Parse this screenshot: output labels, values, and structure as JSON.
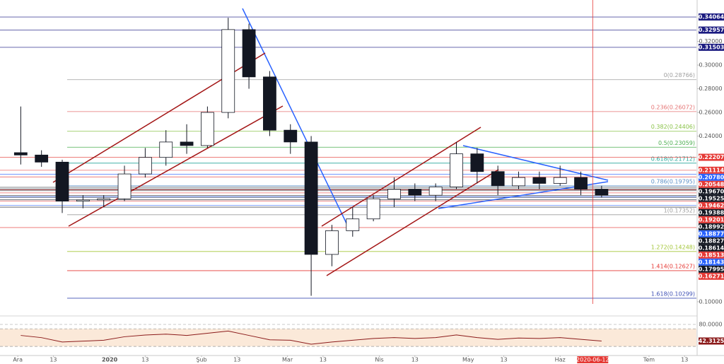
{
  "chart_data": {
    "type": "candlestick",
    "x": [
      "2019-12-02",
      "2019-12-09",
      "2019-12-16",
      "2019-12-23",
      "2019-12-30",
      "2020-01-06",
      "2020-01-13",
      "2020-01-20",
      "2020-01-27",
      "2020-02-03",
      "2020-02-10",
      "2020-02-17",
      "2020-02-24",
      "2020-03-02",
      "2020-03-09",
      "2020-03-16",
      "2020-03-23",
      "2020-03-30",
      "2020-04-06",
      "2020-04-13",
      "2020-04-20",
      "2020-04-27",
      "2020-05-04",
      "2020-05-11",
      "2020-05-18",
      "2020-05-25",
      "2020-06-01",
      "2020-06-08",
      "2020-06-15"
    ],
    "open": [
      0.226,
      0.224,
      0.218,
      0.185,
      0.186,
      0.187,
      0.208,
      0.222,
      0.235,
      0.232,
      0.26,
      0.33,
      0.29,
      0.245,
      0.235,
      0.14,
      0.16,
      0.17,
      0.187,
      0.195,
      0.19,
      0.197,
      0.225,
      0.21,
      0.198,
      0.205,
      0.2,
      0.205,
      0.195
    ],
    "high": [
      0.265,
      0.228,
      0.22,
      0.19,
      0.19,
      0.215,
      0.23,
      0.245,
      0.25,
      0.265,
      0.34,
      0.335,
      0.295,
      0.25,
      0.24,
      0.165,
      0.18,
      0.19,
      0.205,
      0.2,
      0.2,
      0.235,
      0.23,
      0.215,
      0.21,
      0.21,
      0.215,
      0.21,
      0.198
    ],
    "low": [
      0.216,
      0.214,
      0.175,
      0.179,
      0.18,
      0.185,
      0.205,
      0.215,
      0.225,
      0.23,
      0.255,
      0.28,
      0.24,
      0.225,
      0.105,
      0.13,
      0.155,
      0.168,
      0.18,
      0.185,
      0.185,
      0.195,
      0.2,
      0.19,
      0.195,
      0.195,
      0.198,
      0.19,
      0.188
    ],
    "close": [
      0.224,
      0.218,
      0.185,
      0.186,
      0.187,
      0.208,
      0.222,
      0.235,
      0.232,
      0.26,
      0.33,
      0.29,
      0.245,
      0.235,
      0.14,
      0.16,
      0.17,
      0.187,
      0.195,
      0.19,
      0.197,
      0.225,
      0.21,
      0.198,
      0.205,
      0.2,
      0.205,
      0.195,
      0.19
    ],
    "up_color": "#ffffff",
    "down_color": "#131722",
    "xlim": [
      "2019-11-25",
      "2020-07-17"
    ],
    "ylim": [
      0.0892,
      0.355
    ],
    "xticks": [
      {
        "value": "2019-12-01",
        "label": "Ara"
      },
      {
        "value": "2019-12-13",
        "label": "13"
      },
      {
        "value": "2020-01-01",
        "label": "2020"
      },
      {
        "value": "2020-01-13",
        "label": "13"
      },
      {
        "value": "2020-02-01",
        "label": "Şub"
      },
      {
        "value": "2020-02-13",
        "label": "13"
      },
      {
        "value": "2020-03-01",
        "label": "Mar"
      },
      {
        "value": "2020-03-13",
        "label": "13"
      },
      {
        "value": "2020-04-01",
        "label": "Nis"
      },
      {
        "value": "2020-04-13",
        "label": "13"
      },
      {
        "value": "2020-05-01",
        "label": "May"
      },
      {
        "value": "2020-05-13",
        "label": "13"
      },
      {
        "value": "2020-06-01",
        "label": "Haz"
      },
      {
        "value": "2020-07-01",
        "label": "Tem"
      },
      {
        "value": "2020-07-13",
        "label": "13"
      }
    ],
    "yticks": [
      {
        "value": 0.32,
        "label": "0.32000"
      },
      {
        "value": 0.3,
        "label": "0.30000"
      },
      {
        "value": 0.28,
        "label": "0.28000"
      },
      {
        "value": 0.26,
        "label": "0.26000"
      },
      {
        "value": 0.24,
        "label": "0.24000"
      },
      {
        "value": 0.1,
        "label": "0.10000"
      }
    ],
    "price_lines": [
      {
        "value": 0.34064,
        "label": "0.34064",
        "color": "#1a1a80"
      },
      {
        "value": 0.32957,
        "label": "0.32957",
        "color": "#1a1a80"
      },
      {
        "value": 0.31503,
        "label": "0.31503",
        "color": "#1a1a80"
      },
      {
        "value": 0.22207,
        "label": "0.22207",
        "color": "#e53935"
      },
      {
        "value": 0.21114,
        "label": "0.21114",
        "color": "#e53935"
      },
      {
        "value": 0.2078,
        "label": "0.20780",
        "color": "#2962ff"
      },
      {
        "value": 0.20548,
        "label": "0.20548",
        "color": "#e53935"
      },
      {
        "value": 0.1967,
        "label": "0.19670",
        "color": "#131722"
      },
      {
        "value": 0.19525,
        "label": "0.19525",
        "color": "#131722"
      },
      {
        "value": 0.19462,
        "label": "0.19462",
        "color": "#e53935"
      },
      {
        "value": 0.19388,
        "label": "0.19388",
        "color": "#131722"
      },
      {
        "value": 0.19201,
        "label": "0.19201",
        "color": "#e53935"
      },
      {
        "value": 0.18992,
        "label": "0.18992",
        "color": "#131722"
      },
      {
        "value": 0.18877,
        "label": "0.18877",
        "color": "#2962ff"
      },
      {
        "value": 0.18827,
        "label": "0.18827",
        "color": "#131722"
      },
      {
        "value": 0.18614,
        "label": "0.18614",
        "color": "#131722"
      },
      {
        "value": 0.18513,
        "label": "0.18513",
        "color": "#e53935"
      },
      {
        "value": 0.18143,
        "label": "0.18143",
        "color": "#2962ff"
      },
      {
        "value": 0.17995,
        "label": "0.17995",
        "color": "#131722"
      },
      {
        "value": 0.16271,
        "label": "0.16271",
        "color": "#e53935"
      }
    ],
    "fib_levels": [
      {
        "value": 0.28766,
        "label": "0(0.28766)",
        "color": "#9e9e9e"
      },
      {
        "value": 0.26072,
        "label": "0.236(0.26072)",
        "color": "#e57373"
      },
      {
        "value": 0.24406,
        "label": "0.382(0.24406)",
        "color": "#8bc34a"
      },
      {
        "value": 0.23059,
        "label": "0.5(0.23059)",
        "color": "#4caf50"
      },
      {
        "value": 0.21712,
        "label": "0.618(0.21712)",
        "color": "#26a69a"
      },
      {
        "value": 0.19795,
        "label": "0.786(0.19795)",
        "color": "#5b8fc7"
      },
      {
        "value": 0.17352,
        "label": "1(0.17352)",
        "color": "#9e9e9e"
      },
      {
        "value": 0.14248,
        "label": "1.272(0.14248)",
        "color": "#a4c639"
      },
      {
        "value": 0.12627,
        "label": "1.414(0.12627)",
        "color": "#e53935"
      },
      {
        "value": 0.10299,
        "label": "1.618(0.10299)",
        "color": "#3f51b5"
      }
    ],
    "crosshair": {
      "x": "2020-06-12",
      "color": "#e53935"
    },
    "rsi": {
      "values": [
        55,
        50,
        40,
        42,
        44,
        52,
        56,
        58,
        55,
        60,
        65,
        55,
        45,
        44,
        35,
        40,
        44,
        48,
        50,
        48,
        50,
        56,
        50,
        46,
        49,
        48,
        50,
        46,
        42.3125
      ],
      "color": "#8b1a1a",
      "ylim": [
        11,
        96
      ],
      "yticks": [
        {
          "value": 80,
          "label": "80.0000"
        }
      ],
      "band": [
        30,
        70
      ]
    }
  }
}
